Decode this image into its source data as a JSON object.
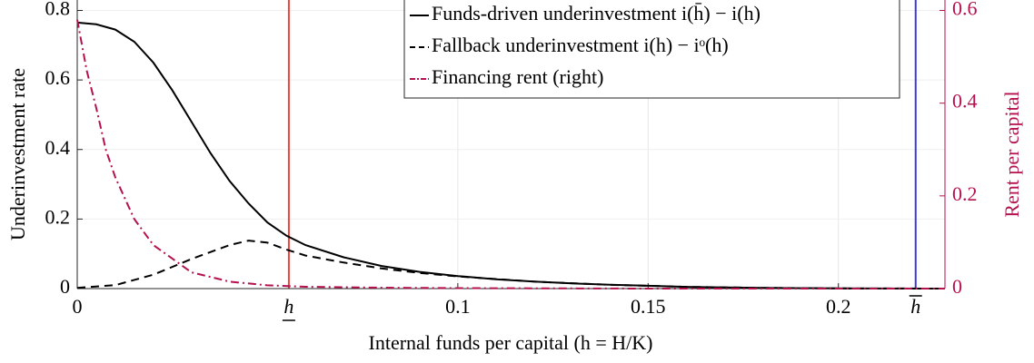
{
  "chart_data": {
    "type": "line",
    "xlabel": "Internal funds per capital (h = H/K)",
    "ylabel": "Underinvestment rate",
    "y2label": "Rent per capital",
    "y2color": "#b5114f",
    "xlim": [
      0,
      0.228
    ],
    "ylim": [
      0,
      0.83
    ],
    "y2lim": [
      0,
      0.6225
    ],
    "xticks": [
      0,
      {
        "value": 0.0556,
        "label": "h",
        "decoration": "underline",
        "line_color": "#e8413a"
      },
      0.1,
      0.15,
      0.2,
      {
        "value": 0.2203,
        "label": "h",
        "decoration": "overline",
        "line_color": "#3a3ad8"
      }
    ],
    "yticks": [
      0,
      0.2,
      0.4,
      0.6,
      0.8
    ],
    "y2ticks": [
      0,
      0.2,
      0.4,
      0.6
    ],
    "grid": true,
    "legend": "top-right",
    "series": [
      {
        "name": "Funds-driven underinvestment i(h̄) − i(h)",
        "color": "#000000",
        "dash": "solid",
        "x": [
          0,
          0.005,
          0.01,
          0.015,
          0.02,
          0.025,
          0.03,
          0.035,
          0.04,
          0.045,
          0.05,
          0.055,
          0.06,
          0.07,
          0.08,
          0.09,
          0.1,
          0.11,
          0.12,
          0.13,
          0.14,
          0.15,
          0.16,
          0.18,
          0.2,
          0.228
        ],
        "values": [
          0.765,
          0.76,
          0.745,
          0.71,
          0.65,
          0.57,
          0.48,
          0.39,
          0.31,
          0.245,
          0.19,
          0.152,
          0.125,
          0.09,
          0.065,
          0.048,
          0.036,
          0.027,
          0.02,
          0.015,
          0.011,
          0.008,
          0.005,
          0.002,
          0.0005,
          0
        ]
      },
      {
        "name": "Fallback underinvestment i(h) − iᵒ(h)",
        "color": "#000000",
        "dash": "dashed",
        "x": [
          0,
          0.01,
          0.02,
          0.03,
          0.04,
          0.045,
          0.05,
          0.055,
          0.06,
          0.07,
          0.08,
          0.09,
          0.1,
          0.12,
          0.14,
          0.16,
          0.18,
          0.2,
          0.228
        ],
        "values": [
          0.002,
          0.01,
          0.04,
          0.085,
          0.125,
          0.138,
          0.132,
          0.112,
          0.095,
          0.075,
          0.058,
          0.045,
          0.035,
          0.02,
          0.011,
          0.005,
          0.002,
          0.0005,
          0
        ]
      },
      {
        "name": "Financing rent (right)",
        "color": "#b5114f",
        "dash": "dashdot",
        "axis": "y2",
        "x": [
          0,
          0.0025,
          0.005,
          0.0075,
          0.01,
          0.015,
          0.02,
          0.03,
          0.04,
          0.05,
          0.06,
          0.08,
          0.1,
          0.15,
          0.228
        ],
        "values": [
          0.58,
          0.47,
          0.39,
          0.3,
          0.24,
          0.15,
          0.094,
          0.035,
          0.015,
          0.007,
          0.004,
          0.002,
          0.001,
          0,
          0
        ]
      }
    ]
  }
}
